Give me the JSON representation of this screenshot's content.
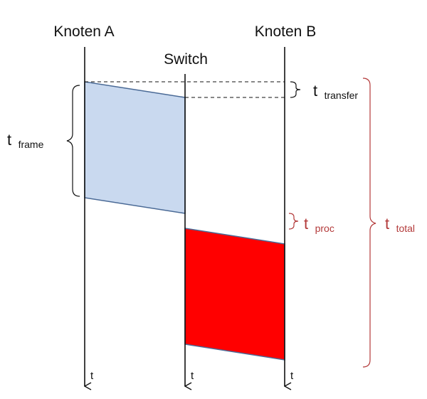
{
  "nodes": {
    "node_a": "Knoten A",
    "switch": "Switch",
    "node_b": "Knoten B"
  },
  "time_axis_label": "t",
  "intervals": {
    "transfer": {
      "symbol": "t",
      "subscript": "transfer"
    },
    "frame": {
      "symbol": "t",
      "subscript": "frame"
    },
    "proc": {
      "symbol": "t",
      "subscript": "proc"
    },
    "total": {
      "symbol": "t",
      "subscript": "total"
    }
  },
  "colors": {
    "frame_fill_a": "#c9d9ef",
    "frame_fill_b": "#ff0000",
    "frame_border": "#4a6a96",
    "annotation_red": "#b33a3a",
    "axis": "#111111"
  }
}
